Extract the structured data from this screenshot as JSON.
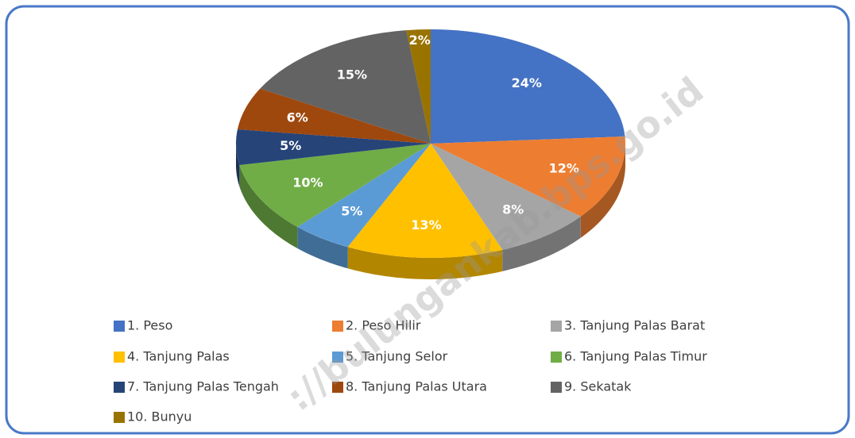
{
  "chart_data": {
    "type": "pie",
    "categories": [
      "1. Peso",
      "2. Peso Hilir",
      "3. Tanjung Palas Barat",
      "4. Tanjung Palas",
      "5. Tanjung Selor",
      "6. Tanjung Palas Timur",
      "7. Tanjung Palas Tengah",
      "8. Tanjung Palas Utara",
      "9. Sekatak",
      "10. Bunyu"
    ],
    "values": [
      24,
      12,
      8,
      13,
      5,
      10,
      5,
      6,
      15,
      2
    ],
    "value_labels": [
      "24%",
      "12%",
      "8%",
      "13%",
      "5%",
      "10%",
      "5%",
      "6%",
      "15%",
      "2%"
    ],
    "colors": [
      "#4472c4",
      "#ed7d31",
      "#a5a5a5",
      "#ffc000",
      "#5b9bd5",
      "#70ad47",
      "#264478",
      "#9e480e",
      "#636363",
      "#997300"
    ],
    "legend": "bottom"
  },
  "watermark": "://bulungankab.bps.go.id"
}
